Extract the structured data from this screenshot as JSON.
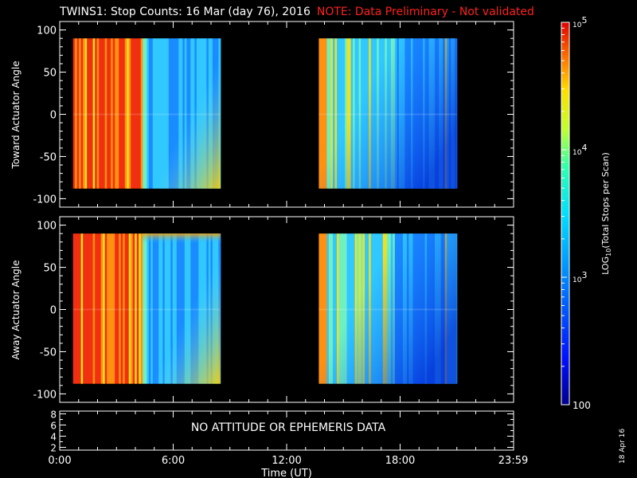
{
  "title": {
    "main": "TWINS1: Stop Counts: 16 Mar (day  76), 2016",
    "note": "NOTE: Data Preliminary - Not validated"
  },
  "chart_data": [
    {
      "type": "heatmap",
      "name": "toward",
      "ylabel": "Toward Actuator Angle",
      "ylim": [
        -110,
        110
      ],
      "yticks": [
        "100",
        "50",
        "0",
        "-50",
        "-100"
      ],
      "ytick_values": [
        100,
        50,
        0,
        -50,
        -100
      ],
      "data_range_y": [
        -88,
        90
      ],
      "data_segments_hours": [
        [
          0.7,
          8.5
        ],
        [
          13.7,
          21.0
        ]
      ],
      "description_colors": "high counts (red/orange) early in each pass, dropping to blue later"
    },
    {
      "type": "heatmap",
      "name": "away",
      "ylabel": "Away Actuator Angle",
      "ylim": [
        -110,
        110
      ],
      "yticks": [
        "100",
        "50",
        "0",
        "-50",
        "-100"
      ],
      "ytick_values": [
        100,
        50,
        0,
        -50,
        -100
      ],
      "data_range_y": [
        -88,
        90
      ],
      "data_segments_hours": [
        [
          0.7,
          8.5
        ],
        [
          13.7,
          21.0
        ]
      ]
    },
    {
      "type": "line",
      "name": "ephemeris",
      "ylim": [
        1.5,
        8.5
      ],
      "yticks": [
        "8",
        "6",
        "4",
        "2"
      ],
      "ytick_values": [
        8,
        6,
        4,
        2
      ],
      "message": "NO ATTITUDE OR EPHEMERIS DATA"
    }
  ],
  "xaxis": {
    "xlabel": "Time (UT)",
    "xlim_hours": [
      0,
      24
    ],
    "ticks": [
      "0:00",
      "6:00",
      "12:00",
      "18:00",
      "23:59"
    ],
    "tick_values": [
      0,
      6,
      12,
      18,
      23.98
    ]
  },
  "colorbar": {
    "label": "LOG10(Total Stops per Scan)",
    "label_main": "LOG",
    "label_sub": "10",
    "label_rest": "(Total Stops per Scan)",
    "ticks": [
      {
        "base": "10",
        "exp": "5",
        "value": 100000
      },
      {
        "base": "10",
        "exp": "4",
        "value": 10000
      },
      {
        "base": "10",
        "exp": "3",
        "value": 1000
      },
      {
        "base": "100",
        "exp": "",
        "value": 100
      }
    ],
    "range": [
      100,
      100000
    ]
  },
  "date_stamp": "18 Apr 16"
}
